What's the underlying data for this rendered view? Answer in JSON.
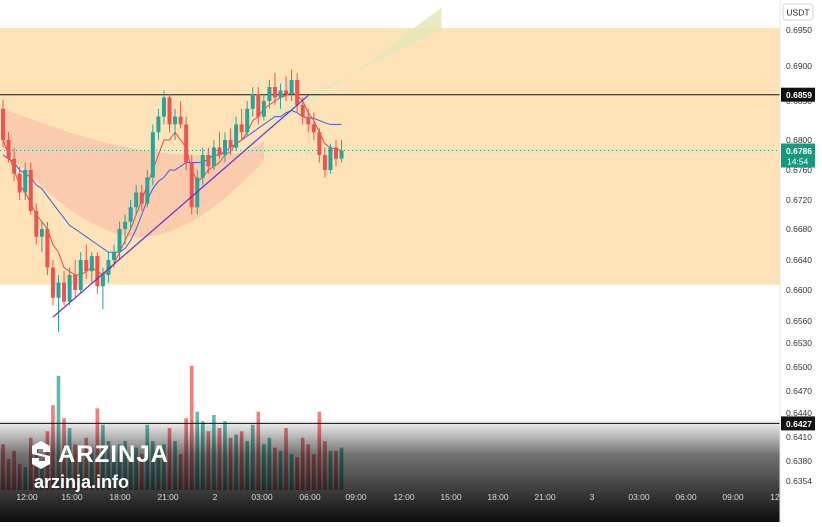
{
  "brand": {
    "name": "ARZINJA",
    "url": "arzinja.info"
  },
  "currency": "USDT",
  "colors": {
    "up": "#26a69a",
    "down": "#ef5350",
    "zone": "#ffe3b8",
    "cloud_bull": "#e5e6b8",
    "cloud_bear": "#f8c3a8",
    "baseline": "#3f5ee8",
    "conversion": "#e84a3a",
    "trendline": "#6a2fd1",
    "price_tag": "#18987d"
  },
  "chart_data": {
    "type": "candlestick",
    "title": "",
    "xlabel": "",
    "ylabel": "",
    "y_ticks": [
      "0.6950",
      "0.6900",
      "0.6850",
      "0.6800",
      "0.6760",
      "0.6720",
      "0.6680",
      "0.6640",
      "0.6600",
      "0.6560",
      "0.6530",
      "0.6500",
      "0.6470",
      "0.6440",
      "0.6410",
      "0.6380",
      "0.6354"
    ],
    "x_ticks": [
      "12:00",
      "15:00",
      "18:00",
      "21:00",
      "2",
      "03:00",
      "06:00",
      "09:00",
      "12:00",
      "15:00",
      "18:00",
      "21:00",
      "3",
      "03:00",
      "06:00",
      "09:00",
      "12"
    ],
    "supply_zone": [
      0.6607,
      0.6953
    ],
    "horizontal_lines": [
      {
        "value": 0.6859,
        "label": "0.6859"
      },
      {
        "value": 0.6427,
        "label": "0.6427"
      }
    ],
    "current_price": {
      "value": 0.6786,
      "label": "0.6786",
      "countdown": "14:54"
    },
    "candles": [
      [
        0.684,
        0.6852,
        0.679,
        0.68
      ],
      [
        0.68,
        0.681,
        0.677,
        0.6775
      ],
      [
        0.6775,
        0.679,
        0.6745,
        0.6755
      ],
      [
        0.6755,
        0.6765,
        0.672,
        0.673
      ],
      [
        0.673,
        0.677,
        0.672,
        0.676
      ],
      [
        0.676,
        0.677,
        0.67,
        0.6705
      ],
      [
        0.6705,
        0.6715,
        0.666,
        0.667
      ],
      [
        0.667,
        0.669,
        0.665,
        0.668
      ],
      [
        0.668,
        0.669,
        0.662,
        0.663
      ],
      [
        0.663,
        0.664,
        0.658,
        0.659
      ],
      [
        0.659,
        0.662,
        0.6545,
        0.661
      ],
      [
        0.661,
        0.6625,
        0.658,
        0.6585
      ],
      [
        0.6585,
        0.663,
        0.658,
        0.662
      ],
      [
        0.662,
        0.664,
        0.659,
        0.66
      ],
      [
        0.66,
        0.665,
        0.6595,
        0.664
      ],
      [
        0.664,
        0.666,
        0.6615,
        0.6625
      ],
      [
        0.6625,
        0.665,
        0.661,
        0.6645
      ],
      [
        0.6645,
        0.665,
        0.6595,
        0.6605
      ],
      [
        0.6605,
        0.663,
        0.6575,
        0.662
      ],
      [
        0.662,
        0.665,
        0.661,
        0.664
      ],
      [
        0.664,
        0.666,
        0.663,
        0.665
      ],
      [
        0.665,
        0.669,
        0.664,
        0.668
      ],
      [
        0.668,
        0.67,
        0.666,
        0.669
      ],
      [
        0.669,
        0.672,
        0.668,
        0.671
      ],
      [
        0.671,
        0.674,
        0.67,
        0.673
      ],
      [
        0.673,
        0.674,
        0.6705,
        0.6715
      ],
      [
        0.6715,
        0.676,
        0.671,
        0.675
      ],
      [
        0.675,
        0.682,
        0.674,
        0.681
      ],
      [
        0.681,
        0.684,
        0.68,
        0.683
      ],
      [
        0.683,
        0.6865,
        0.682,
        0.6855
      ],
      [
        0.6855,
        0.686,
        0.681,
        0.682
      ],
      [
        0.682,
        0.684,
        0.68,
        0.683
      ],
      [
        0.683,
        0.685,
        0.6815,
        0.682
      ],
      [
        0.682,
        0.683,
        0.676,
        0.677
      ],
      [
        0.677,
        0.678,
        0.67,
        0.671
      ],
      [
        0.671,
        0.676,
        0.67,
        0.675
      ],
      [
        0.675,
        0.679,
        0.674,
        0.678
      ],
      [
        0.678,
        0.679,
        0.6755,
        0.6765
      ],
      [
        0.6765,
        0.68,
        0.676,
        0.679
      ],
      [
        0.679,
        0.681,
        0.6775,
        0.678
      ],
      [
        0.678,
        0.681,
        0.677,
        0.68
      ],
      [
        0.68,
        0.6815,
        0.678,
        0.679
      ],
      [
        0.679,
        0.683,
        0.6785,
        0.682
      ],
      [
        0.682,
        0.684,
        0.68,
        0.681
      ],
      [
        0.681,
        0.685,
        0.6805,
        0.684
      ],
      [
        0.684,
        0.687,
        0.683,
        0.686
      ],
      [
        0.686,
        0.687,
        0.682,
        0.683
      ],
      [
        0.683,
        0.686,
        0.6825,
        0.685
      ],
      [
        0.685,
        0.688,
        0.684,
        0.687
      ],
      [
        0.687,
        0.689,
        0.6845,
        0.6855
      ],
      [
        0.6855,
        0.6875,
        0.684,
        0.6865
      ],
      [
        0.6865,
        0.6885,
        0.685,
        0.686
      ],
      [
        0.686,
        0.6895,
        0.685,
        0.688
      ],
      [
        0.688,
        0.689,
        0.6835,
        0.6845
      ],
      [
        0.6845,
        0.6855,
        0.682,
        0.683
      ],
      [
        0.683,
        0.684,
        0.681,
        0.682
      ],
      [
        0.682,
        0.6835,
        0.68,
        0.681
      ],
      [
        0.681,
        0.6815,
        0.677,
        0.678
      ],
      [
        0.678,
        0.679,
        0.675,
        0.676
      ],
      [
        0.676,
        0.6795,
        0.6755,
        0.679
      ],
      [
        0.679,
        0.68,
        0.6765,
        0.6775
      ],
      [
        0.6775,
        0.68,
        0.677,
        0.6786
      ]
    ],
    "volume": [
      140,
      95,
      120,
      80,
      70,
      160,
      130,
      75,
      180,
      260,
      350,
      220,
      190,
      140,
      110,
      160,
      130,
      250,
      200,
      150,
      120,
      140,
      150,
      110,
      130,
      110,
      200,
      150,
      130,
      140,
      190,
      150,
      110,
      220,
      380,
      240,
      210,
      180,
      230,
      190,
      210,
      160,
      170,
      180,
      150,
      200,
      240,
      140,
      160,
      130,
      120,
      190,
      110,
      100,
      160,
      140,
      110,
      240,
      150,
      120,
      120,
      130
    ],
    "ichimoku_conversion": [
      0.68,
      0.678,
      0.676,
      0.674,
      0.673,
      0.6715,
      0.67,
      0.669,
      0.668,
      0.666,
      0.665,
      0.663,
      0.6625,
      0.662,
      0.662,
      0.6625,
      0.663,
      0.6625,
      0.662,
      0.6625,
      0.6635,
      0.665,
      0.6665,
      0.668,
      0.67,
      0.672,
      0.674,
      0.676,
      0.678,
      0.68,
      0.68,
      0.681,
      0.68,
      0.679,
      0.676,
      0.6745,
      0.675,
      0.676,
      0.6765,
      0.677,
      0.678,
      0.6785,
      0.6795,
      0.68,
      0.681,
      0.6825,
      0.683,
      0.684,
      0.6845,
      0.685,
      0.6855,
      0.6858,
      0.6862,
      0.6858,
      0.685,
      0.6835,
      0.6825,
      0.681,
      0.6795,
      0.679,
      0.6788,
      0.6786
    ],
    "ichimoku_base": [
      0.678,
      0.6775,
      0.677,
      0.676,
      0.6755,
      0.675,
      0.674,
      0.6735,
      0.6725,
      0.6715,
      0.6705,
      0.6695,
      0.6685,
      0.668,
      0.6675,
      0.667,
      0.6665,
      0.666,
      0.6655,
      0.665,
      0.665,
      0.665,
      0.6655,
      0.6665,
      0.668,
      0.67,
      0.672,
      0.6735,
      0.6745,
      0.675,
      0.676,
      0.676,
      0.6765,
      0.677,
      0.677,
      0.677,
      0.677,
      0.6775,
      0.678,
      0.678,
      0.6785,
      0.679,
      0.6795,
      0.68,
      0.6805,
      0.681,
      0.6815,
      0.682,
      0.6825,
      0.683,
      0.683,
      0.6835,
      0.6838,
      0.6835,
      0.683,
      0.6828,
      0.6828,
      0.6825,
      0.6822,
      0.682,
      0.682,
      0.682
    ],
    "trendline": {
      "from": [
        9,
        0.6565
      ],
      "to": [
        55,
        0.6858
      ]
    }
  }
}
